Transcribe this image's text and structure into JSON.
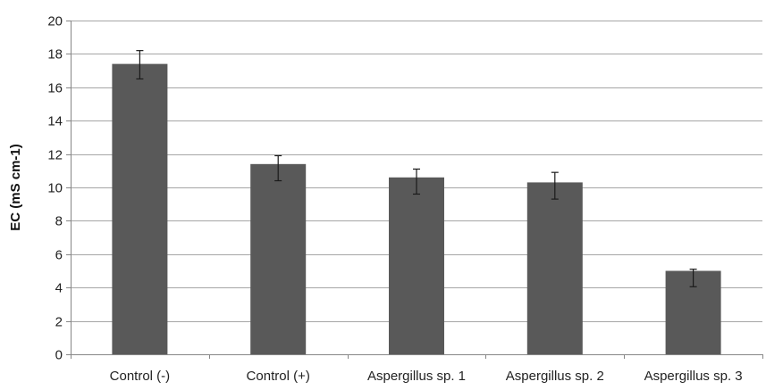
{
  "chart_data": {
    "type": "bar",
    "title": "",
    "xlabel": "",
    "ylabel": "EC (mS cm-1)",
    "ylim": [
      0,
      20
    ],
    "yticks": [
      0,
      2,
      4,
      6,
      8,
      10,
      12,
      14,
      16,
      18,
      20
    ],
    "grid": true,
    "legend": "none",
    "categories": [
      "Control (-)",
      "Control (+)",
      "Aspergillus sp. 1",
      "Aspergillus sp. 2",
      "Aspergillus sp. 3"
    ],
    "series": [
      {
        "values": [
          17.4,
          11.4,
          10.6,
          10.3,
          5.0
        ],
        "error_low": [
          16.5,
          10.4,
          9.6,
          9.3,
          4.05
        ],
        "error_high": [
          18.2,
          11.9,
          11.1,
          10.9,
          5.1
        ],
        "color": "#595959"
      }
    ],
    "grid_color": "#a6a6a6",
    "axis_color": "#868686"
  }
}
